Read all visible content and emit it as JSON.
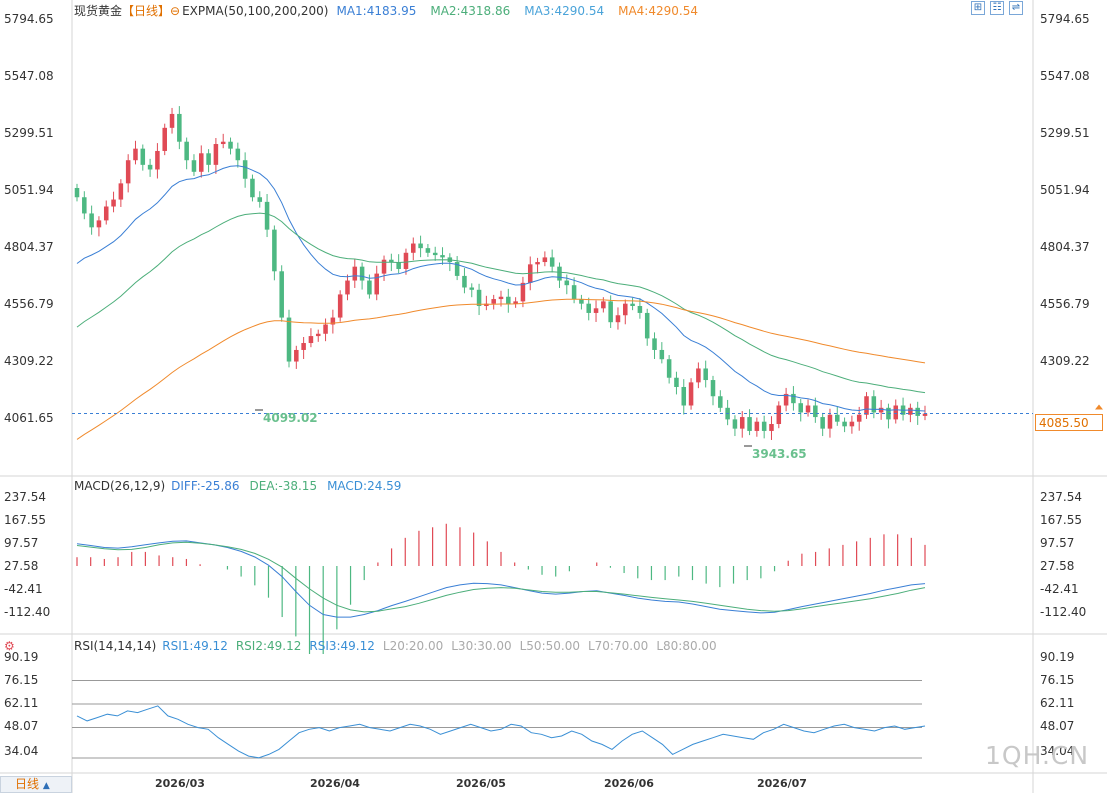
{
  "header": {
    "title": "现货黄金",
    "period_tag": "【日线】",
    "indicator": "EXPMA(50,100,200,200)",
    "ma1": "MA1:4183.95",
    "ma2": "MA2:4318.86",
    "ma3": "MA3:4290.54",
    "ma4": "MA4:4290.54"
  },
  "toolbar": {
    "zoom_icon": "zoom-icon",
    "grid_icon": "grid-icon",
    "settings_icon": "settings-icon"
  },
  "price_axis": [
    "5794.65",
    "5547.08",
    "5299.51",
    "5051.94",
    "4804.37",
    "4556.79",
    "4309.22",
    "4061.65"
  ],
  "current_price": "4085.50",
  "annotations": {
    "low1": "4099.02",
    "low2": "3943.65"
  },
  "macd": {
    "title": "MACD(26,12,9)",
    "diff": "DIFF:-25.86",
    "dea": "DEA:-38.15",
    "macd": "MACD:24.59",
    "axis": [
      "237.54",
      "167.55",
      "97.57",
      "27.58",
      "-42.41",
      "-112.40"
    ]
  },
  "rsi": {
    "icon": "settings-icon",
    "title": "RSI(14,14,14)",
    "rsi1": "RSI1:49.12",
    "rsi2": "RSI2:49.12",
    "rsi3": "RSI3:49.12",
    "l20": "L20:20.00",
    "l30": "L30:30.00",
    "l50": "L50:50.00",
    "l70": "L70:70.00",
    "l80": "L80:80.00",
    "axis": [
      "90.19",
      "76.15",
      "62.11",
      "48.07",
      "34.04"
    ]
  },
  "x_axis": [
    "2026/03",
    "2026/04",
    "2026/05",
    "2026/06",
    "2026/07"
  ],
  "period_selector": "日线",
  "watermark": "1QH.CN",
  "colors": {
    "up": "#e04a55",
    "down": "#4db882",
    "ma1": "#3a7fd5",
    "ma2": "#4cae7a",
    "ma3": "#f08a2c",
    "diff": "#3a7fd5",
    "dea": "#4cae7a",
    "rsi": "#3a8fd5"
  },
  "chart_data": {
    "type": "candlestick",
    "series": [
      {
        "name": "MA1",
        "value": 4183.95
      },
      {
        "name": "MA2",
        "value": 4318.86
      },
      {
        "name": "MA3",
        "value": 4290.54
      },
      {
        "name": "MA4",
        "value": 4290.54
      }
    ],
    "price_range": [
      3943.65,
      5794.65
    ],
    "close": [
      5020,
      4950,
      4890,
      4920,
      4980,
      5010,
      5080,
      5180,
      5230,
      5160,
      5140,
      5220,
      5320,
      5380,
      5260,
      5180,
      5130,
      5210,
      5160,
      5250,
      5260,
      5230,
      5180,
      5100,
      5020,
      5000,
      4880,
      4700,
      4500,
      4310,
      4360,
      4390,
      4420,
      4430,
      4470,
      4500,
      4600,
      4660,
      4720,
      4660,
      4600,
      4690,
      4750,
      4740,
      4710,
      4780,
      4820,
      4800,
      4780,
      4770,
      4760,
      4740,
      4680,
      4630,
      4620,
      4550,
      4560,
      4580,
      4590,
      4560,
      4570,
      4650,
      4730,
      4740,
      4760,
      4720,
      4660,
      4640,
      4580,
      4560,
      4520,
      4540,
      4570,
      4480,
      4510,
      4560,
      4550,
      4520,
      4410,
      4360,
      4320,
      4240,
      4200,
      4120,
      4220,
      4280,
      4230,
      4160,
      4110,
      4060,
      4020,
      4070,
      4010,
      4050,
      4010,
      4040,
      4120,
      4170,
      4130,
      4090,
      4120,
      4070,
      4020,
      4080,
      4050,
      4030,
      4050,
      4080,
      4160,
      4090,
      4110,
      4060,
      4120,
      4080,
      4110,
      4075,
      4085
    ],
    "lows": [
      "4099.02",
      "3943.65"
    ],
    "macd": {
      "diff": [
        95,
        90,
        84,
        82,
        86,
        92,
        98,
        103,
        104,
        98,
        92,
        84,
        72,
        55,
        30,
        -5,
        -50,
        -92,
        -120,
        -128,
        -128,
        -120,
        -108,
        -93,
        -80,
        -66,
        -52,
        -38,
        -30,
        -25,
        -26,
        -30,
        -38,
        -47,
        -55,
        -58,
        -55,
        -50,
        -48,
        -55,
        -62,
        -70,
        -76,
        -80,
        -82,
        -88,
        -96,
        -104,
        -108,
        -112,
        -115,
        -113,
        -105,
        -96,
        -88,
        -80,
        -72,
        -64,
        -56,
        -46,
        -38,
        -30,
        -26
      ],
      "dea": [
        90,
        85,
        80,
        77,
        78,
        84,
        92,
        98,
        100,
        97,
        92,
        86,
        78,
        66,
        48,
        24,
        -10,
        -42,
        -70,
        -92,
        -106,
        -112,
        -110,
        -103,
        -96,
        -86,
        -74,
        -62,
        -52,
        -44,
        -40,
        -38,
        -40,
        -45,
        -50,
        -52,
        -52,
        -50,
        -50,
        -54,
        -58,
        -63,
        -68,
        -72,
        -76,
        -80,
        -86,
        -92,
        -98,
        -104,
        -108,
        -110,
        -108,
        -103,
        -96,
        -90,
        -84,
        -78,
        -72,
        -64,
        -56,
        -46,
        -38
      ]
    },
    "rsi": [
      55,
      52,
      54,
      56,
      55,
      58,
      57,
      59,
      61,
      55,
      53,
      50,
      48,
      47,
      42,
      38,
      34,
      31,
      30,
      32,
      35,
      40,
      45,
      47,
      48,
      46,
      48,
      49,
      50,
      48,
      47,
      46,
      48,
      50,
      49,
      47,
      44,
      46,
      48,
      50,
      48,
      46,
      47,
      50,
      49,
      45,
      44,
      42,
      43,
      46,
      44,
      40,
      38,
      35,
      40,
      44,
      46,
      42,
      38,
      32,
      35,
      38,
      40,
      42,
      44,
      43,
      42,
      41,
      45,
      47,
      50,
      48,
      46,
      45,
      47,
      49,
      50,
      48,
      47,
      46,
      48,
      49,
      47,
      48,
      49
    ]
  }
}
